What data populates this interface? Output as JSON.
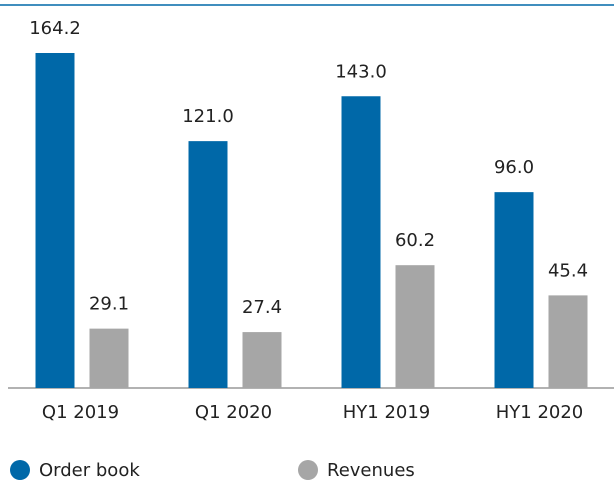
{
  "chart_data": {
    "type": "bar",
    "categories": [
      "Q1 2019",
      "Q1 2020",
      "HY1 2019",
      "HY1 2020"
    ],
    "series": [
      {
        "name": "Order book",
        "color": "#0068a8",
        "values": [
          164.2,
          121,
          143,
          96
        ],
        "value_labels": [
          "164.2",
          "121.0",
          "143.0",
          "96.0"
        ]
      },
      {
        "name": "Revenues",
        "color": "#a6a6a6",
        "values": [
          29.1,
          27.4,
          60.2,
          45.4
        ]
      }
    ]
  }
}
